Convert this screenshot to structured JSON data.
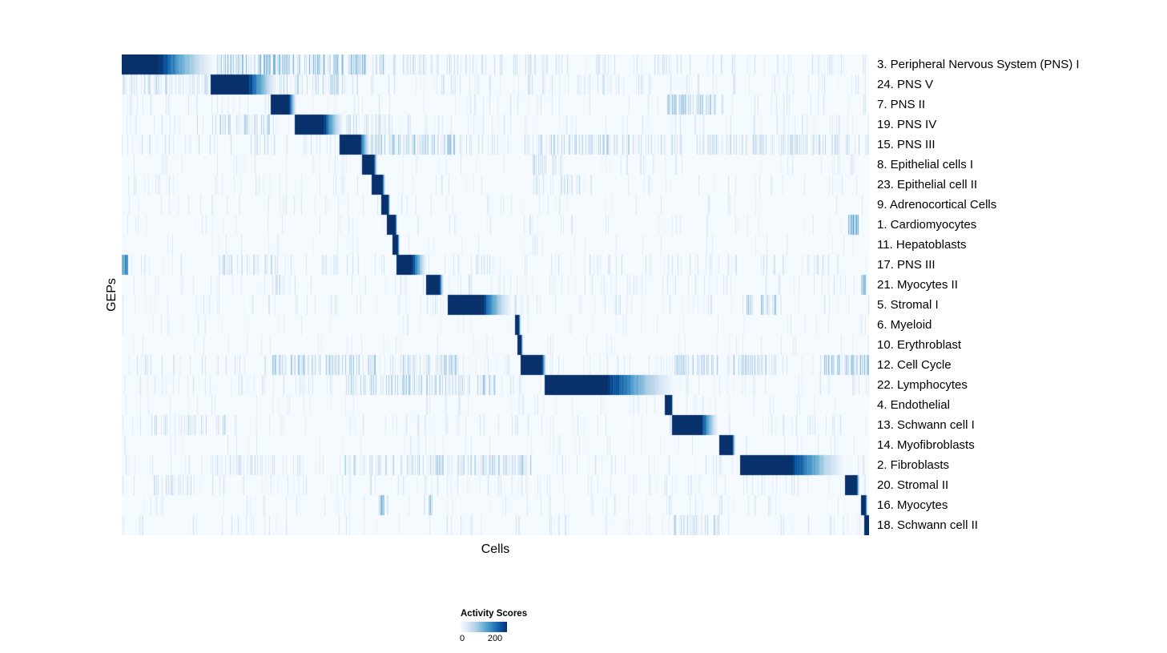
{
  "chart_data": {
    "type": "heatmap",
    "title": "",
    "xlabel": "Cells",
    "ylabel": "GEPs",
    "colorbar": {
      "title": "Activity Scores",
      "min": 0,
      "max": 200,
      "min_label": "0",
      "max_label": "200"
    },
    "colormap": [
      "#F7FBFF",
      "#DEEBF7",
      "#C6DBEF",
      "#9ECAE1",
      "#6BAED6",
      "#4292C6",
      "#2171B5",
      "#08519C",
      "#08306B"
    ],
    "background_score": 4,
    "layout_hint": {
      "rows": 24,
      "diagonal_block_structure": true,
      "legend_position": "bottom-center"
    },
    "rows": [
      {
        "label": "3. Peripheral Nervous System (PNS) I",
        "block": {
          "start": 0.0,
          "solid_end": 0.048,
          "fade_end": 0.125,
          "peak": 200
        },
        "noise": {
          "base_density": 0.15,
          "base_max": 50,
          "regions": [
            {
              "start": 0.128,
              "end": 0.35,
              "density": 0.5,
              "max": 100
            },
            {
              "start": 0.36,
              "end": 0.6,
              "density": 0.18,
              "max": 60
            }
          ]
        }
      },
      {
        "label": "24. PNS V",
        "block": {
          "start": 0.12,
          "solid_end": 0.168,
          "fade_end": 0.208,
          "peak": 200
        },
        "noise": {
          "base_density": 0.12,
          "base_max": 45,
          "regions": [
            {
              "start": 0.0,
              "end": 0.115,
              "density": 0.3,
              "max": 60
            },
            {
              "start": 0.21,
              "end": 0.3,
              "density": 0.3,
              "max": 70
            }
          ]
        }
      },
      {
        "label": "7. PNS II",
        "block": {
          "start": 0.2,
          "solid_end": 0.223,
          "fade_end": 0.233,
          "peak": 200
        },
        "noise": {
          "base_density": 0.08,
          "base_max": 40,
          "regions": [
            {
              "start": 0.73,
              "end": 0.805,
              "density": 0.5,
              "max": 90
            }
          ]
        }
      },
      {
        "label": "19. PNS IV",
        "block": {
          "start": 0.232,
          "solid_end": 0.268,
          "fade_end": 0.296,
          "peak": 200
        },
        "noise": {
          "base_density": 0.1,
          "base_max": 40,
          "regions": [
            {
              "start": 0.1,
              "end": 0.2,
              "density": 0.4,
              "max": 70
            },
            {
              "start": 0.3,
              "end": 0.36,
              "density": 0.25,
              "max": 55
            }
          ]
        }
      },
      {
        "label": "15. PNS III",
        "block": {
          "start": 0.292,
          "solid_end": 0.318,
          "fade_end": 0.332,
          "peak": 200
        },
        "noise": {
          "base_density": 0.2,
          "base_max": 55,
          "regions": [
            {
              "start": 0.33,
              "end": 0.45,
              "density": 0.45,
              "max": 85
            },
            {
              "start": 0.55,
              "end": 0.68,
              "density": 0.35,
              "max": 75
            },
            {
              "start": 0.78,
              "end": 0.97,
              "density": 0.3,
              "max": 65
            }
          ]
        }
      },
      {
        "label": "8. Epithelial cells I",
        "block": {
          "start": 0.322,
          "solid_end": 0.337,
          "fade_end": 0.341,
          "peak": 200
        },
        "noise": {
          "base_density": 0.07,
          "base_max": 35,
          "regions": [
            {
              "start": 0.55,
              "end": 0.59,
              "density": 0.25,
              "max": 55
            }
          ]
        }
      },
      {
        "label": "23. Epithelial cell II",
        "block": {
          "start": 0.335,
          "solid_end": 0.348,
          "fade_end": 0.352,
          "peak": 200
        },
        "noise": {
          "base_density": 0.07,
          "base_max": 35,
          "regions": [
            {
              "start": 0.55,
              "end": 0.63,
              "density": 0.3,
              "max": 65
            }
          ]
        }
      },
      {
        "label": "9. Adrenocortical Cells",
        "block": {
          "start": 0.348,
          "solid_end": 0.356,
          "fade_end": 0.359,
          "peak": 200
        },
        "noise": {
          "base_density": 0.06,
          "base_max": 35,
          "regions": []
        }
      },
      {
        "label": "1. Cardiomyocytes",
        "block": {
          "start": 0.355,
          "solid_end": 0.365,
          "fade_end": 0.368,
          "peak": 200
        },
        "noise": {
          "base_density": 0.06,
          "base_max": 35,
          "regions": [
            {
              "start": 0.972,
              "end": 0.985,
              "density": 0.7,
              "max": 120
            }
          ]
        }
      },
      {
        "label": "11. Hepatoblasts",
        "block": {
          "start": 0.363,
          "solid_end": 0.369,
          "fade_end": 0.371,
          "peak": 200
        },
        "noise": {
          "base_density": 0.05,
          "base_max": 30,
          "regions": []
        }
      },
      {
        "label": "17. PNS III",
        "block": {
          "start": 0.368,
          "solid_end": 0.388,
          "fade_end": 0.408,
          "peak": 200
        },
        "noise": {
          "base_density": 0.13,
          "base_max": 45,
          "regions": [
            {
              "start": 0.0,
              "end": 0.008,
              "density": 0.9,
              "max": 160
            },
            {
              "start": 0.13,
              "end": 0.21,
              "density": 0.3,
              "max": 60
            }
          ]
        }
      },
      {
        "label": "21. Myocytes II",
        "block": {
          "start": 0.408,
          "solid_end": 0.424,
          "fade_end": 0.43,
          "peak": 200
        },
        "noise": {
          "base_density": 0.09,
          "base_max": 40,
          "regions": [
            {
              "start": 0.205,
              "end": 0.215,
              "density": 0.6,
              "max": 100
            },
            {
              "start": 0.988,
              "end": 0.995,
              "density": 0.7,
              "max": 120
            }
          ]
        }
      },
      {
        "label": "5. Stromal I",
        "block": {
          "start": 0.437,
          "solid_end": 0.48,
          "fade_end": 0.523,
          "peak": 200
        },
        "noise": {
          "base_density": 0.11,
          "base_max": 40,
          "regions": [
            {
              "start": 0.83,
              "end": 0.875,
              "density": 0.4,
              "max": 80
            }
          ]
        }
      },
      {
        "label": "6. Myeloid",
        "block": {
          "start": 0.527,
          "solid_end": 0.531,
          "fade_end": 0.533,
          "peak": 200
        },
        "noise": {
          "base_density": 0.05,
          "base_max": 30,
          "regions": []
        }
      },
      {
        "label": "10. Erythroblast",
        "block": {
          "start": 0.53,
          "solid_end": 0.534,
          "fade_end": 0.536,
          "peak": 200
        },
        "noise": {
          "base_density": 0.05,
          "base_max": 30,
          "regions": []
        }
      },
      {
        "label": "12. Cell Cycle",
        "block": {
          "start": 0.534,
          "solid_end": 0.562,
          "fade_end": 0.567,
          "peak": 200
        },
        "noise": {
          "base_density": 0.13,
          "base_max": 45,
          "regions": [
            {
              "start": 0.2,
              "end": 0.34,
              "density": 0.35,
              "max": 85
            },
            {
              "start": 0.36,
              "end": 0.45,
              "density": 0.3,
              "max": 75
            },
            {
              "start": 0.74,
              "end": 0.87,
              "density": 0.4,
              "max": 85
            },
            {
              "start": 0.94,
              "end": 1.0,
              "density": 0.5,
              "max": 95
            }
          ]
        }
      },
      {
        "label": "22. Lymphocytes",
        "block": {
          "start": 0.566,
          "solid_end": 0.65,
          "fade_end": 0.742,
          "peak": 200
        },
        "noise": {
          "base_density": 0.11,
          "base_max": 40,
          "regions": [
            {
              "start": 0.3,
              "end": 0.5,
              "density": 0.4,
              "max": 80
            }
          ]
        }
      },
      {
        "label": "4. Endothelial",
        "block": {
          "start": 0.727,
          "solid_end": 0.735,
          "fade_end": 0.737,
          "peak": 200
        },
        "noise": {
          "base_density": 0.06,
          "base_max": 30,
          "regions": []
        }
      },
      {
        "label": "13. Schwann cell I",
        "block": {
          "start": 0.737,
          "solid_end": 0.776,
          "fade_end": 0.798,
          "peak": 200
        },
        "noise": {
          "base_density": 0.09,
          "base_max": 40,
          "regions": [
            {
              "start": 0.04,
              "end": 0.14,
              "density": 0.3,
              "max": 65
            }
          ]
        }
      },
      {
        "label": "14. Myofibroblasts",
        "block": {
          "start": 0.8,
          "solid_end": 0.817,
          "fade_end": 0.821,
          "peak": 200
        },
        "noise": {
          "base_density": 0.07,
          "base_max": 35,
          "regions": []
        }
      },
      {
        "label": "2. Fibroblasts",
        "block": {
          "start": 0.828,
          "solid_end": 0.896,
          "fade_end": 0.968,
          "peak": 200
        },
        "noise": {
          "base_density": 0.11,
          "base_max": 40,
          "regions": [
            {
              "start": 0.12,
              "end": 0.2,
              "density": 0.25,
              "max": 55
            },
            {
              "start": 0.3,
              "end": 0.55,
              "density": 0.35,
              "max": 75
            }
          ]
        }
      },
      {
        "label": "20. Stromal II",
        "block": {
          "start": 0.968,
          "solid_end": 0.983,
          "fade_end": 0.987,
          "peak": 200
        },
        "noise": {
          "base_density": 0.11,
          "base_max": 40,
          "regions": [
            {
              "start": 0.04,
              "end": 0.1,
              "density": 0.25,
              "max": 55
            }
          ]
        }
      },
      {
        "label": "16. Myocytes",
        "block": {
          "start": 0.99,
          "solid_end": 0.995,
          "fade_end": 0.997,
          "peak": 200
        },
        "noise": {
          "base_density": 0.08,
          "base_max": 35,
          "regions": [
            {
              "start": 0.345,
              "end": 0.355,
              "density": 0.7,
              "max": 110
            },
            {
              "start": 0.405,
              "end": 0.415,
              "density": 0.6,
              "max": 100
            }
          ]
        }
      },
      {
        "label": "18. Schwann cell II",
        "block": {
          "start": 0.994,
          "solid_end": 1.0,
          "fade_end": 1.0,
          "peak": 200
        },
        "noise": {
          "base_density": 0.1,
          "base_max": 40,
          "regions": [
            {
              "start": 0.73,
              "end": 0.8,
              "density": 0.3,
              "max": 65
            }
          ]
        }
      }
    ]
  }
}
